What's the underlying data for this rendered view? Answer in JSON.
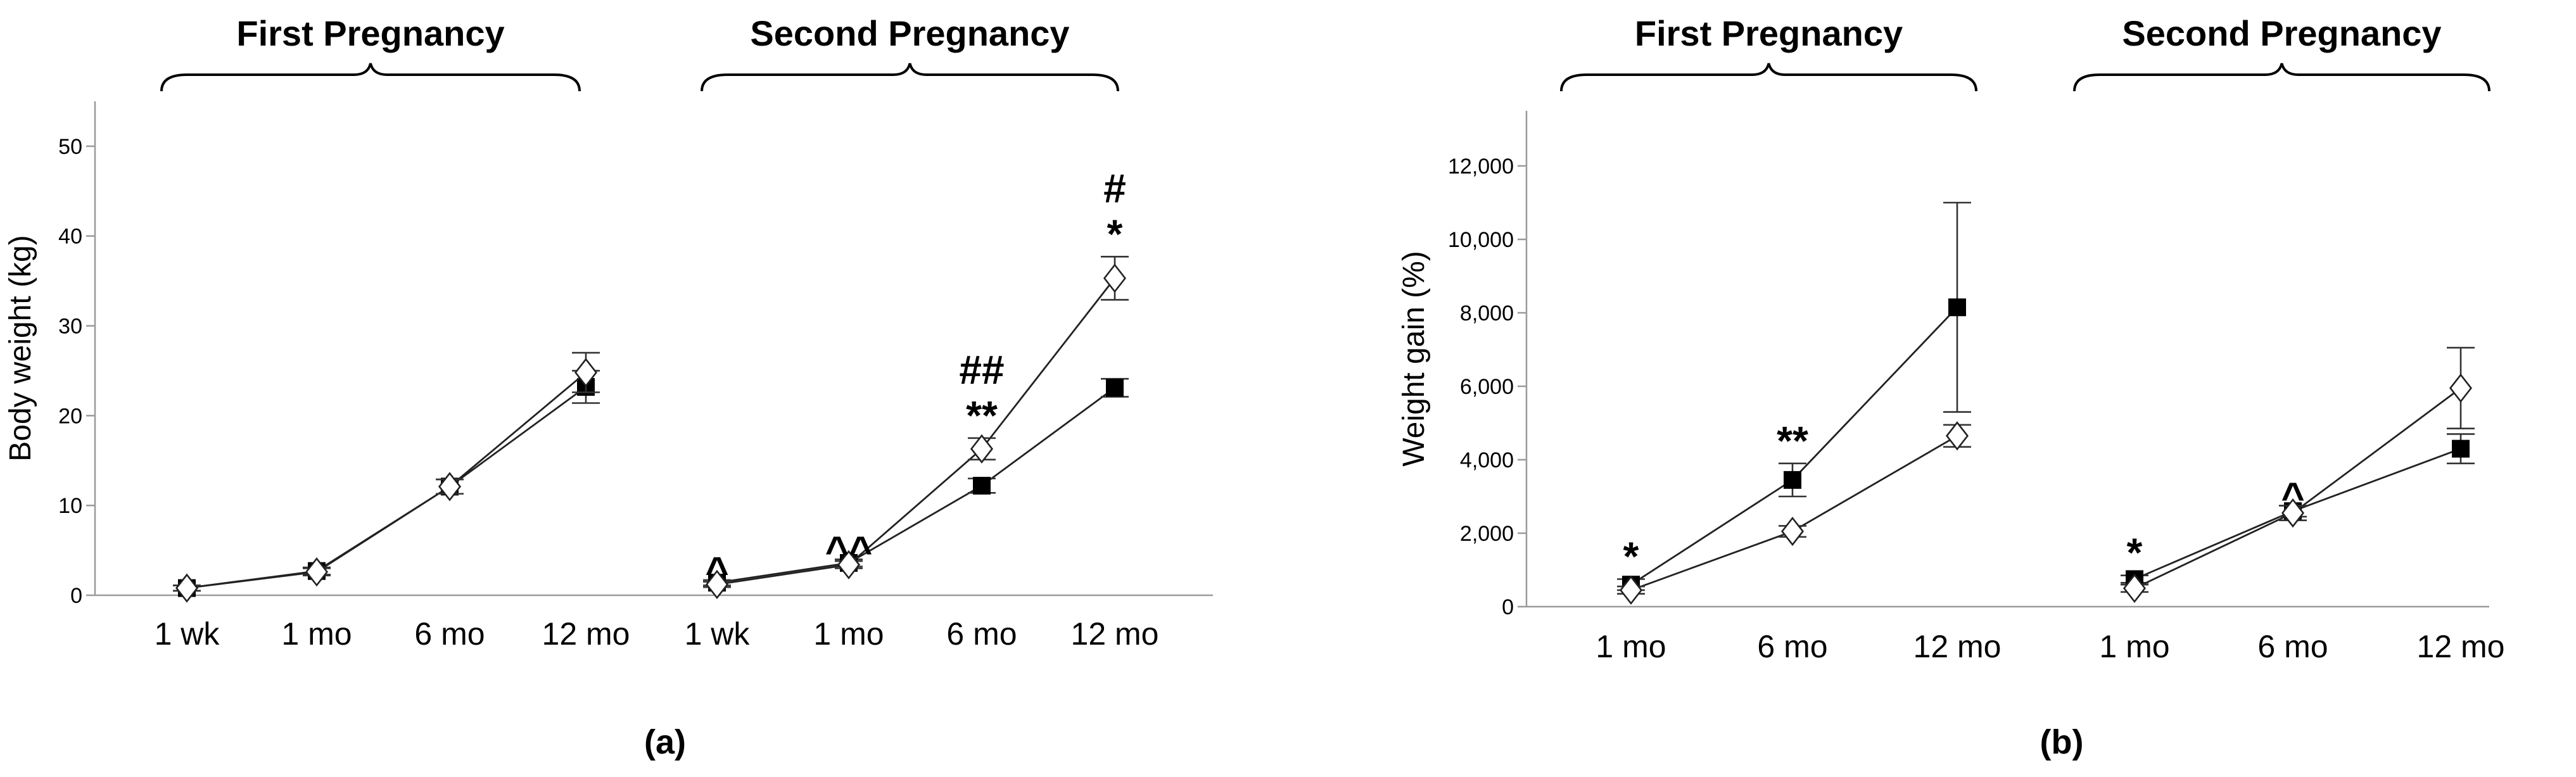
{
  "chart_data": [
    {
      "type": "line",
      "panel_label": "(a)",
      "ylabel": "Body weight (kg)",
      "ylim": [
        0,
        55
      ],
      "yticks": [
        {
          "v": 0,
          "label": "0"
        },
        {
          "v": 10,
          "label": "10"
        },
        {
          "v": 20,
          "label": "20"
        },
        {
          "v": 30,
          "label": "30"
        },
        {
          "v": 40,
          "label": "40"
        },
        {
          "v": 50,
          "label": "50"
        }
      ],
      "subplots": [
        {
          "title": "First Pregnancy",
          "categories": [
            "1 wk",
            "1 mo",
            "6 mo",
            "12 mo"
          ],
          "series": [
            {
              "name": "filled-square",
              "marker": "square",
              "values": [
                0.8,
                2.7,
                12.1,
                23.2
              ],
              "errors": [
                0.3,
                0.4,
                0.8,
                1.8
              ]
            },
            {
              "name": "open-diamond",
              "marker": "diamond",
              "values": [
                0.8,
                2.6,
                12.1,
                24.8
              ],
              "errors": [
                0.3,
                0.4,
                0.8,
                2.2
              ]
            }
          ],
          "annotations": []
        },
        {
          "title": "Second Pregnancy",
          "categories": [
            "1 wk",
            "1 mo",
            "6 mo",
            "12 mo"
          ],
          "series": [
            {
              "name": "filled-square",
              "marker": "square",
              "values": [
                1.4,
                3.6,
                12.2,
                23.1
              ],
              "errors": [
                0.3,
                0.4,
                0.8,
                1.0
              ]
            },
            {
              "name": "open-diamond",
              "marker": "diamond",
              "values": [
                1.2,
                3.4,
                16.3,
                35.3
              ],
              "errors": [
                0.3,
                0.4,
                1.2,
                2.4
              ]
            }
          ],
          "annotations": [
            {
              "cat": 0,
              "lines": [
                "^"
              ]
            },
            {
              "cat": 1,
              "lines": [
                "^^"
              ]
            },
            {
              "cat": 2,
              "lines": [
                "##",
                "**"
              ]
            },
            {
              "cat": 3,
              "lines": [
                "#",
                "*"
              ]
            }
          ]
        }
      ]
    },
    {
      "type": "line",
      "panel_label": "(b)",
      "ylabel": "Weight gain (%)",
      "ylim": [
        0,
        13500
      ],
      "yticks": [
        {
          "v": 0,
          "label": "0"
        },
        {
          "v": 2000,
          "label": "2,000"
        },
        {
          "v": 4000,
          "label": "4,000"
        },
        {
          "v": 6000,
          "label": "6,000"
        },
        {
          "v": 8000,
          "label": "8,000"
        },
        {
          "v": 10000,
          "label": "10,000"
        },
        {
          "v": 12000,
          "label": "12,000"
        }
      ],
      "subplots": [
        {
          "title": "First Pregnancy",
          "categories": [
            "1 mo",
            "6 mo",
            "12 mo"
          ],
          "series": [
            {
              "name": "filled-square",
              "marker": "square",
              "values": [
                600,
                3450,
                8150
              ],
              "errors": [
                150,
                450,
                2850
              ]
            },
            {
              "name": "open-diamond",
              "marker": "diamond",
              "values": [
                450,
                2050,
                4650
              ],
              "errors": [
                100,
                150,
                300
              ]
            }
          ],
          "annotations": [
            {
              "cat": 0,
              "lines": [
                "*"
              ]
            },
            {
              "cat": 1,
              "lines": [
                "**"
              ]
            }
          ]
        },
        {
          "title": "Second Pregnancy",
          "categories": [
            "1 mo",
            "6 mo",
            "12 mo"
          ],
          "series": [
            {
              "name": "filled-square",
              "marker": "square",
              "values": [
                750,
                2600,
                4300
              ],
              "errors": [
                100,
                150,
                400
              ]
            },
            {
              "name": "open-diamond",
              "marker": "diamond",
              "values": [
                500,
                2550,
                5950
              ],
              "errors": [
                100,
                200,
                1100
              ]
            }
          ],
          "annotations": [
            {
              "cat": 0,
              "lines": [
                "*"
              ]
            },
            {
              "cat": 1,
              "lines": [
                "^"
              ]
            }
          ]
        }
      ]
    }
  ]
}
